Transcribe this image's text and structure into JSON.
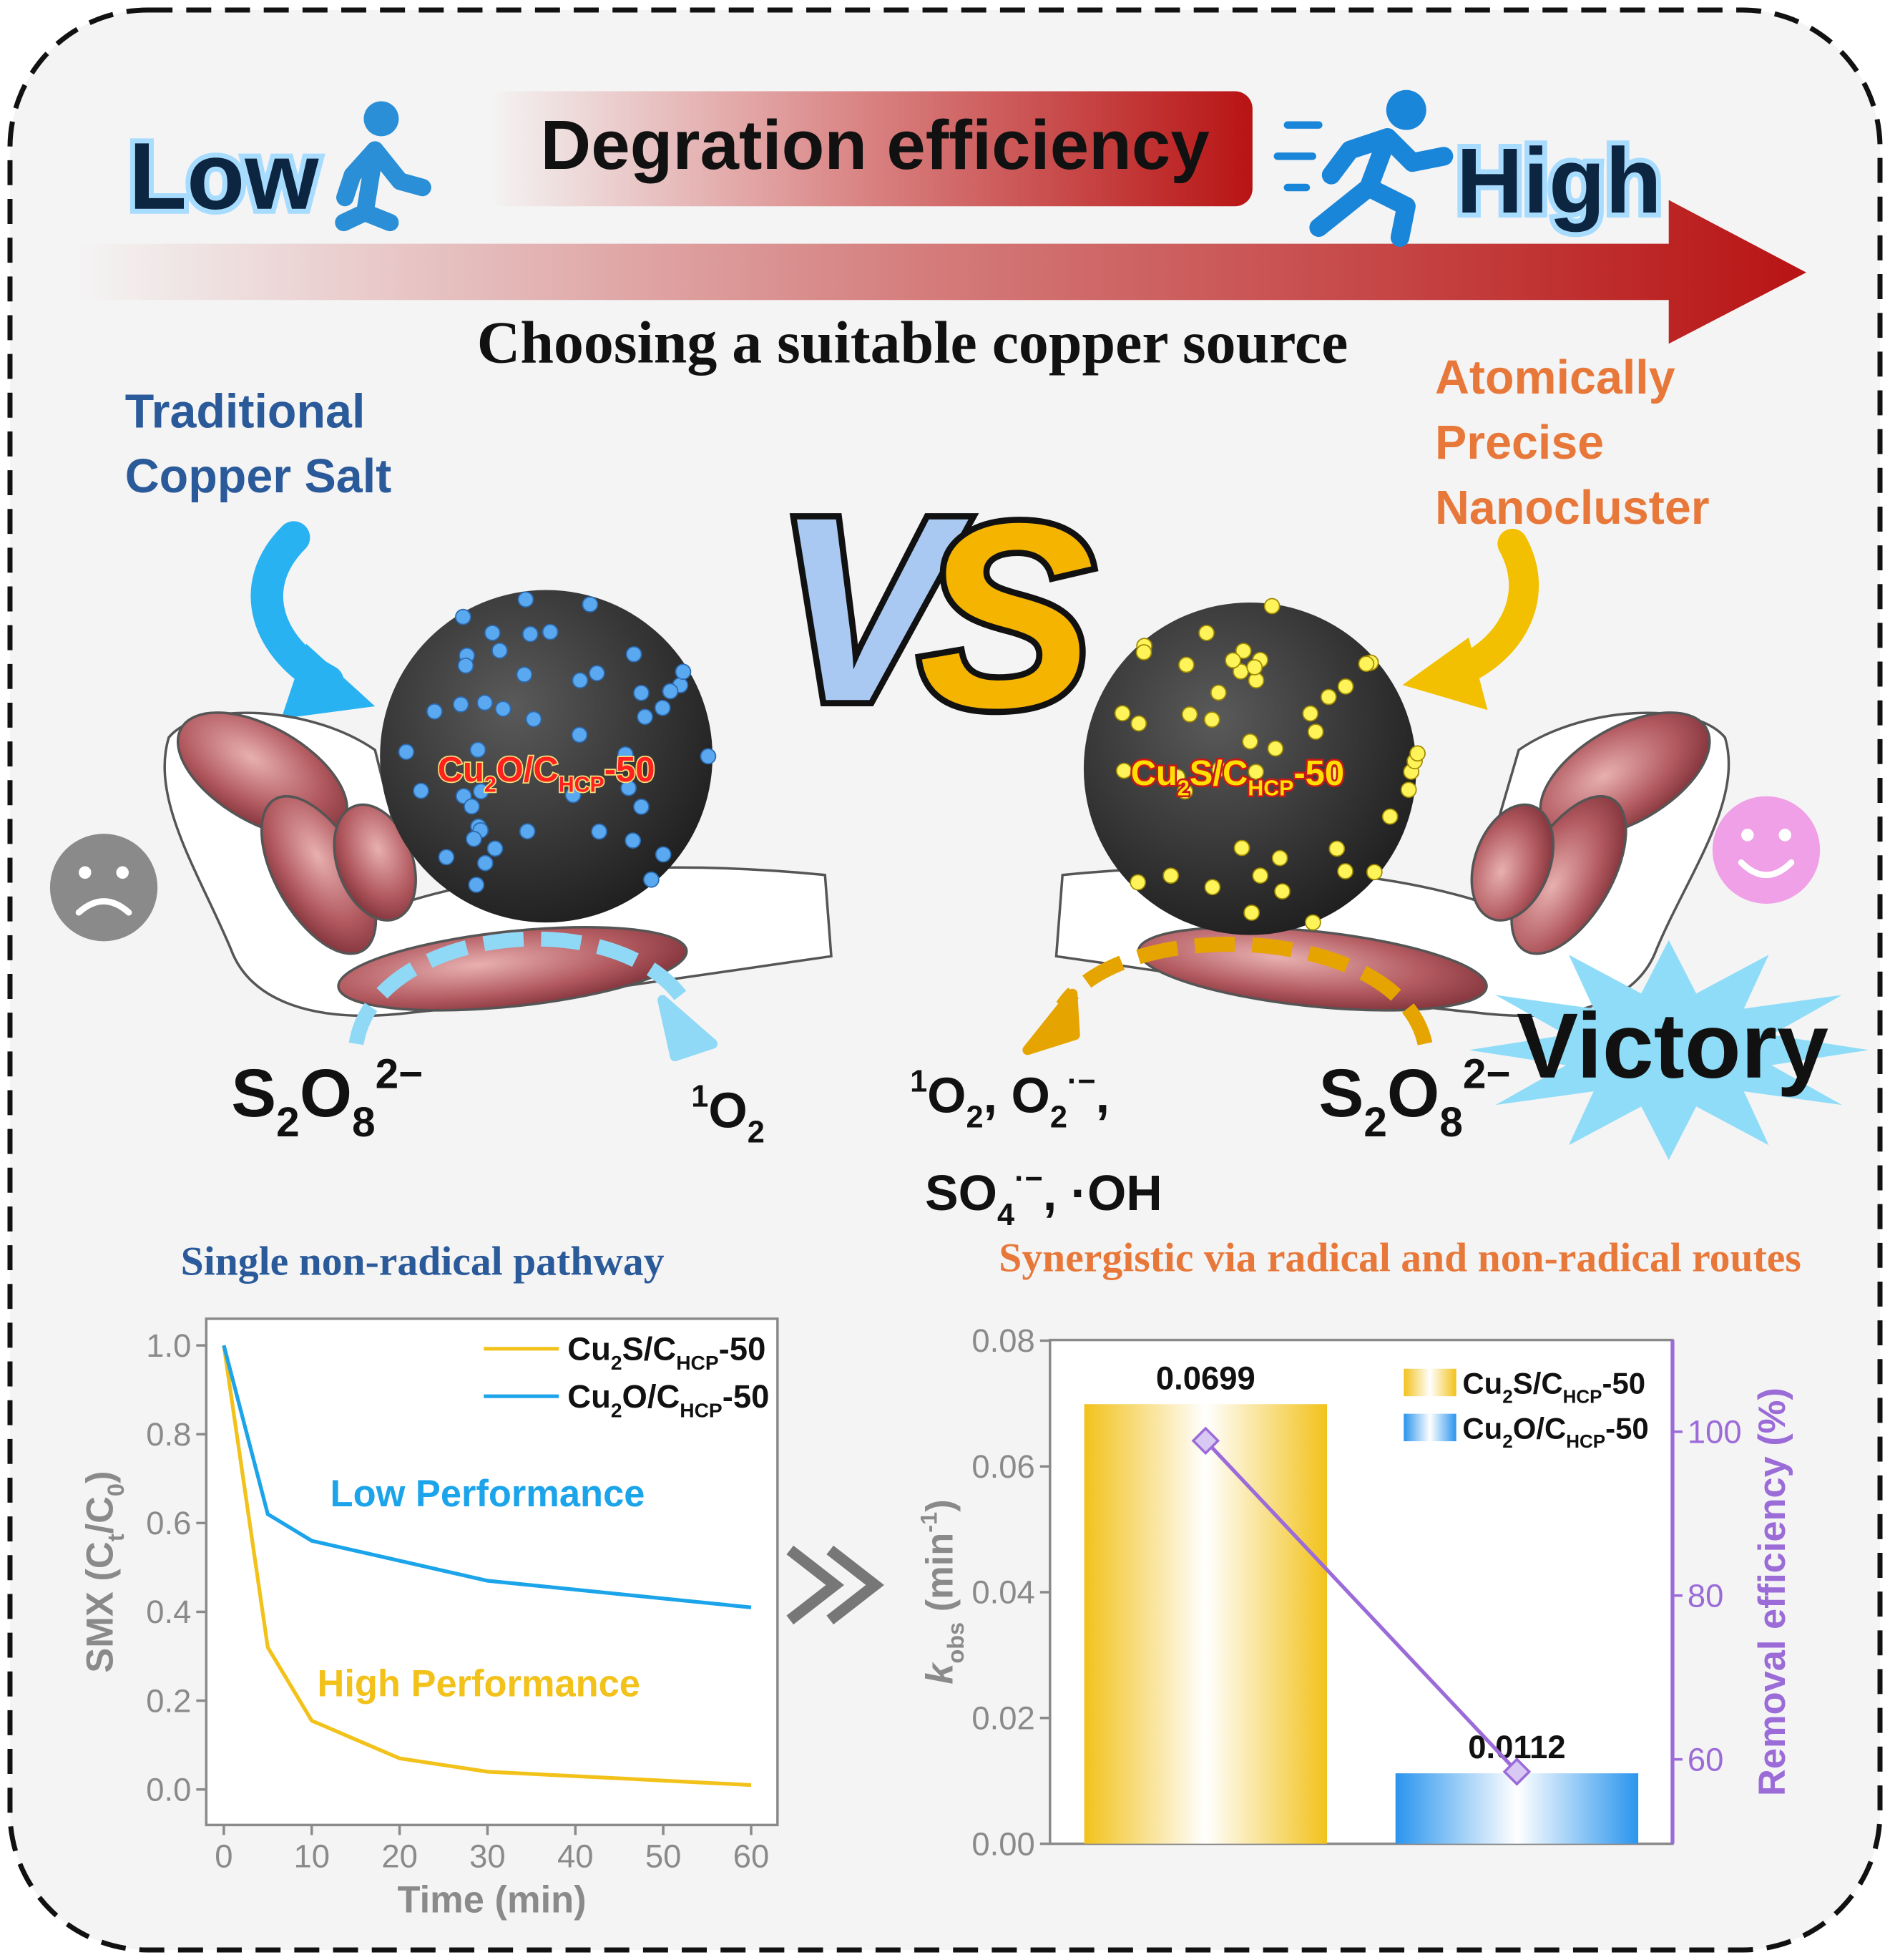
{
  "header": {
    "low": "Low",
    "efficiency": "Degration efficiency",
    "high": "High",
    "subtitle": "Choosing a suitable copper source"
  },
  "versus": [
    "V",
    "S"
  ],
  "left": {
    "title": [
      "Traditional",
      "Copper Salt"
    ],
    "catalyst": [
      {
        "t": "Cu"
      },
      {
        "t": "2",
        "s": "sub"
      },
      {
        "t": "O/C"
      },
      {
        "t": "HCP",
        "s": "sub"
      },
      {
        "t": "-50"
      }
    ],
    "oxidant": [
      {
        "t": "S"
      },
      {
        "t": "2",
        "s": "sub"
      },
      {
        "t": "O"
      },
      {
        "t": "8",
        "s": "sub"
      },
      {
        "t": "2−",
        "s": "sup"
      }
    ],
    "products": [
      [
        {
          "t": "1",
          "s": "sup"
        },
        {
          "t": "O"
        },
        {
          "t": "2",
          "s": "sub"
        }
      ]
    ],
    "pathway": "Single non-radical pathway"
  },
  "right": {
    "title": [
      "Atomically",
      "Precise",
      "Nanocluster"
    ],
    "catalyst": [
      {
        "t": "Cu"
      },
      {
        "t": "2",
        "s": "sub"
      },
      {
        "t": "S/C"
      },
      {
        "t": "HCP",
        "s": "sub"
      },
      {
        "t": "-50"
      }
    ],
    "oxidant": [
      {
        "t": "S"
      },
      {
        "t": "2",
        "s": "sub"
      },
      {
        "t": "O"
      },
      {
        "t": "8",
        "s": "sub"
      },
      {
        "t": "2−",
        "s": "sup"
      }
    ],
    "products": [
      [
        {
          "t": "1",
          "s": "sup"
        },
        {
          "t": "O"
        },
        {
          "t": "2",
          "s": "sub"
        },
        {
          "t": ", O"
        },
        {
          "t": "2",
          "s": "sub"
        },
        {
          "t": "·−",
          "s": "sup"
        },
        {
          "t": ","
        }
      ],
      [
        {
          "t": "SO"
        },
        {
          "t": "4",
          "s": "sub"
        },
        {
          "t": "·−",
          "s": "sup"
        },
        {
          "t": ", ·OH"
        }
      ]
    ],
    "result": "Victory",
    "pathway": "Synergistic via radical and non-radical routes"
  },
  "chart_data": [
    {
      "type": "line",
      "x": [
        0,
        5,
        10,
        20,
        30,
        60
      ],
      "series": [
        {
          "name": [
            {
              "t": "Cu"
            },
            {
              "t": "2",
              "s": "sub"
            },
            {
              "t": "S/C"
            },
            {
              "t": "HCP",
              "s": "sub"
            },
            {
              "t": "-50"
            }
          ],
          "color": "#f2c21b",
          "values": [
            1.0,
            0.32,
            0.155,
            0.07,
            0.04,
            0.01
          ]
        },
        {
          "name": [
            {
              "t": "Cu"
            },
            {
              "t": "2",
              "s": "sub"
            },
            {
              "t": "O/C"
            },
            {
              "t": "HCP",
              "s": "sub"
            },
            {
              "t": "-50"
            }
          ],
          "color": "#1ba4ea",
          "values": [
            1.0,
            0.62,
            0.56,
            0.515,
            0.47,
            0.41
          ]
        }
      ],
      "annotations": [
        {
          "text": "Low Performance",
          "color": "#1ba4ea"
        },
        {
          "text": "High Performance",
          "color": "#f2c21b"
        }
      ],
      "xlabel": "Time (min)",
      "ylabel": [
        {
          "t": "SMX (C"
        },
        {
          "t": "t",
          "s": "sub"
        },
        {
          "t": "/C"
        },
        {
          "t": "0",
          "s": "sub"
        },
        {
          "t": ")"
        }
      ],
      "xlim": [
        -2,
        63
      ],
      "xticks": [
        0,
        10,
        20,
        30,
        40,
        50,
        60
      ],
      "ylim": [
        -0.08,
        1.06
      ],
      "yticks": [
        {
          "value": 0,
          "label": "0.0"
        },
        {
          "value": 0.2,
          "label": "0.2"
        },
        {
          "value": 0.4,
          "label": "0.4"
        },
        {
          "value": 0.6,
          "label": "0.6"
        },
        {
          "value": 0.8,
          "label": "0.8"
        },
        {
          "value": 1,
          "label": "1.0"
        }
      ],
      "legend": "upper right"
    },
    {
      "type": "bar",
      "categories": [
        null,
        null
      ],
      "series": [
        {
          "name": [
            {
              "t": "Cu"
            },
            {
              "t": "2",
              "s": "sub"
            },
            {
              "t": "S/C"
            },
            {
              "t": "HCP",
              "s": "sub"
            },
            {
              "t": "-50"
            }
          ],
          "color": "#f2c21b",
          "values": [
            0.0699,
            null
          ]
        },
        {
          "name": [
            {
              "t": "Cu"
            },
            {
              "t": "2",
              "s": "sub"
            },
            {
              "t": "O/C"
            },
            {
              "t": "HCP",
              "s": "sub"
            },
            {
              "t": "-50"
            }
          ],
          "color": "#2a95ee",
          "values": [
            null,
            0.0112
          ]
        },
        {
          "type": "line",
          "axis": "y2",
          "color": "#9b6bd8",
          "values": [
            98.9,
            58.5
          ]
        }
      ],
      "ylabel": [
        {
          "t": "k",
          "s": "it"
        },
        {
          "t": "obs",
          "s": "sub"
        },
        {
          "t": " (min"
        },
        {
          "t": "-1",
          "s": "sup"
        },
        {
          "t": ")"
        }
      ],
      "y2label": "Removal efficiency (%)",
      "ylim": [
        0,
        0.0801
      ],
      "yticks": [
        {
          "value": 0,
          "label": "0.00"
        },
        {
          "value": 0.02,
          "label": "0.02"
        },
        {
          "value": 0.04,
          "label": "0.04"
        },
        {
          "value": 0.06,
          "label": "0.06"
        },
        {
          "value": 0.08,
          "label": "0.08"
        }
      ],
      "y2lim": [
        49.7,
        111.2
      ],
      "y2ticks": [
        60,
        80,
        100
      ],
      "legend": "upper right"
    }
  ]
}
